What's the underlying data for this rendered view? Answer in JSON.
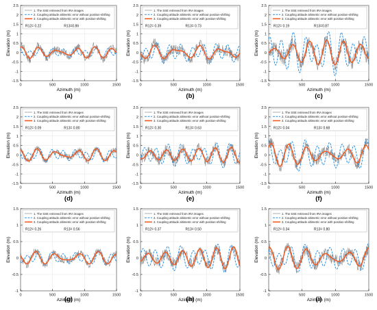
{
  "figure": {
    "legend_labels": [
      "1. The SSE retrieved from IRA images",
      "2. Coupling attitude altimetric error without position-shifting",
      "3. Coupling attitude altimetric error with position-shifting"
    ],
    "colors": {
      "sse": "#8a8a8a",
      "without": "#2a8fe0",
      "with": "#f15a22"
    }
  },
  "chart_data": [
    {
      "type": "line",
      "panel_label": "(a)",
      "xlabel": "Azimuth (m)",
      "ylabel": "Elevation (m)",
      "xlim": [
        0,
        1500
      ],
      "ylim": [
        -1.5,
        2.5
      ],
      "xticks": [
        "0",
        "500",
        "1000",
        "1500"
      ],
      "yticks": [
        "-1.5",
        "-1",
        "-0.5",
        "0",
        "0.5",
        "1",
        "1.5",
        "2",
        "2.5"
      ],
      "r12": "R12= 0.22",
      "r13": "R13=0.86",
      "series_amplitude": {
        "sse": 0.35,
        "without": 0.2,
        "with": 0.28
      }
    },
    {
      "type": "line",
      "panel_label": "(b)",
      "xlabel": "Azimuth (m)",
      "ylabel": "Elevation (m)",
      "xlim": [
        0,
        1500
      ],
      "ylim": [
        -1.5,
        2.5
      ],
      "xticks": [
        "0",
        "500",
        "1000",
        "1500"
      ],
      "yticks": [
        "-1.5",
        "-1",
        "-0.5",
        "0",
        "0.5",
        "1",
        "1.5",
        "2",
        "2.5"
      ],
      "r12": "R12= 0.39",
      "r13": "R13= 0.73",
      "series_amplitude": {
        "sse": 0.45,
        "without": 0.4,
        "with": 0.35
      }
    },
    {
      "type": "line",
      "panel_label": "(c)",
      "xlabel": "Azimuth (m)",
      "ylabel": "Elevation (m)",
      "xlim": [
        0,
        1500
      ],
      "ylim": [
        -1.5,
        2.5
      ],
      "xticks": [
        "0",
        "500",
        "1000",
        "1500"
      ],
      "yticks": [
        "-1.5",
        "-1",
        "-0.5",
        "0",
        "0.5",
        "1",
        "1.5",
        "2",
        "2.5"
      ],
      "r12": "R12= 0.19",
      "r13": "R13=0.87",
      "series_amplitude": {
        "sse": 0.6,
        "without": 0.8,
        "with": 0.6
      }
    },
    {
      "type": "line",
      "panel_label": "(d)",
      "xlabel": "Azimuth (m)",
      "ylabel": "Elevation (m)",
      "xlim": [
        0,
        1500
      ],
      "ylim": [
        -1.5,
        2.5
      ],
      "xticks": [
        "0",
        "500",
        "1000",
        "1500"
      ],
      "yticks": [
        "-1.5",
        "-1",
        "-0.5",
        "0",
        "0.5",
        "1",
        "1.5",
        "2",
        "2.5"
      ],
      "r12": "R12= 0.09",
      "r13": "R13= 0.80",
      "series_amplitude": {
        "sse": 0.3,
        "without": 0.25,
        "with": 0.3
      }
    },
    {
      "type": "line",
      "panel_label": "(e)",
      "xlabel": "Azimuth (m)",
      "ylabel": "Elevation (m)",
      "xlim": [
        0,
        1500
      ],
      "ylim": [
        -1.5,
        2.5
      ],
      "xticks": [
        "0",
        "500",
        "1000",
        "1500"
      ],
      "yticks": [
        "-1.5",
        "-1",
        "-0.5",
        "0",
        "0.5",
        "1",
        "1.5",
        "2",
        "2.5"
      ],
      "r12": "R12= 0.30",
      "r13": "R13= 0.63",
      "series_amplitude": {
        "sse": 0.45,
        "without": 0.45,
        "with": 0.4
      }
    },
    {
      "type": "line",
      "panel_label": "(f)",
      "xlabel": "Azimuth (m)",
      "ylabel": "Elevation (m)",
      "xlim": [
        0,
        1500
      ],
      "ylim": [
        -1.5,
        2.5
      ],
      "xticks": [
        "0",
        "500",
        "1000",
        "1500"
      ],
      "yticks": [
        "-1.5",
        "-1",
        "-0.5",
        "0",
        "0.5",
        "1",
        "1.5",
        "2",
        "2.5"
      ],
      "r12": "R12= 0.04",
      "r13": "R13= 0.68",
      "series_amplitude": {
        "sse": 0.55,
        "without": 0.6,
        "with": 0.55
      }
    },
    {
      "type": "line",
      "panel_label": "(g)",
      "xlabel": "Azimuth (m)",
      "ylabel": "Elevation (m)",
      "xlim": [
        0,
        1500
      ],
      "ylim": [
        -1,
        1.5
      ],
      "xticks": [
        "0",
        "500",
        "1000",
        "1500"
      ],
      "yticks": [
        "-1",
        "-0.5",
        "0",
        "0.5",
        "1",
        "1.5"
      ],
      "r12": "R12= 0.26",
      "r13": "R13= 0.56",
      "series_amplitude": {
        "sse": 0.2,
        "without": 0.15,
        "with": 0.18
      }
    },
    {
      "type": "line",
      "panel_label": "(h)",
      "xlabel": "Azimuth (m)",
      "ylabel": "Elevation (m)",
      "xlim": [
        0,
        1500
      ],
      "ylim": [
        -1,
        1.5
      ],
      "xticks": [
        "0",
        "500",
        "1000",
        "1500"
      ],
      "yticks": [
        "-1",
        "-0.5",
        "0",
        "0.5",
        "1",
        "1.5"
      ],
      "r12": "R12= 0.37",
      "r13": "R13= 0.50",
      "series_amplitude": {
        "sse": 0.3,
        "without": 0.3,
        "with": 0.35
      }
    },
    {
      "type": "line",
      "panel_label": "(i)",
      "xlabel": "Azimuth (m)",
      "ylabel": "Elevation (m)",
      "xlim": [
        0,
        1500
      ],
      "ylim": [
        -1,
        1.5
      ],
      "xticks": [
        "0",
        "500",
        "1000",
        "1500"
      ],
      "yticks": [
        "-1",
        "-0.5",
        "0",
        "0.5",
        "1",
        "1.5"
      ],
      "r12": "R12= 0.34",
      "r13": "R13= 0.80",
      "series_amplitude": {
        "sse": 0.3,
        "without": 0.3,
        "with": 0.32
      }
    }
  ]
}
